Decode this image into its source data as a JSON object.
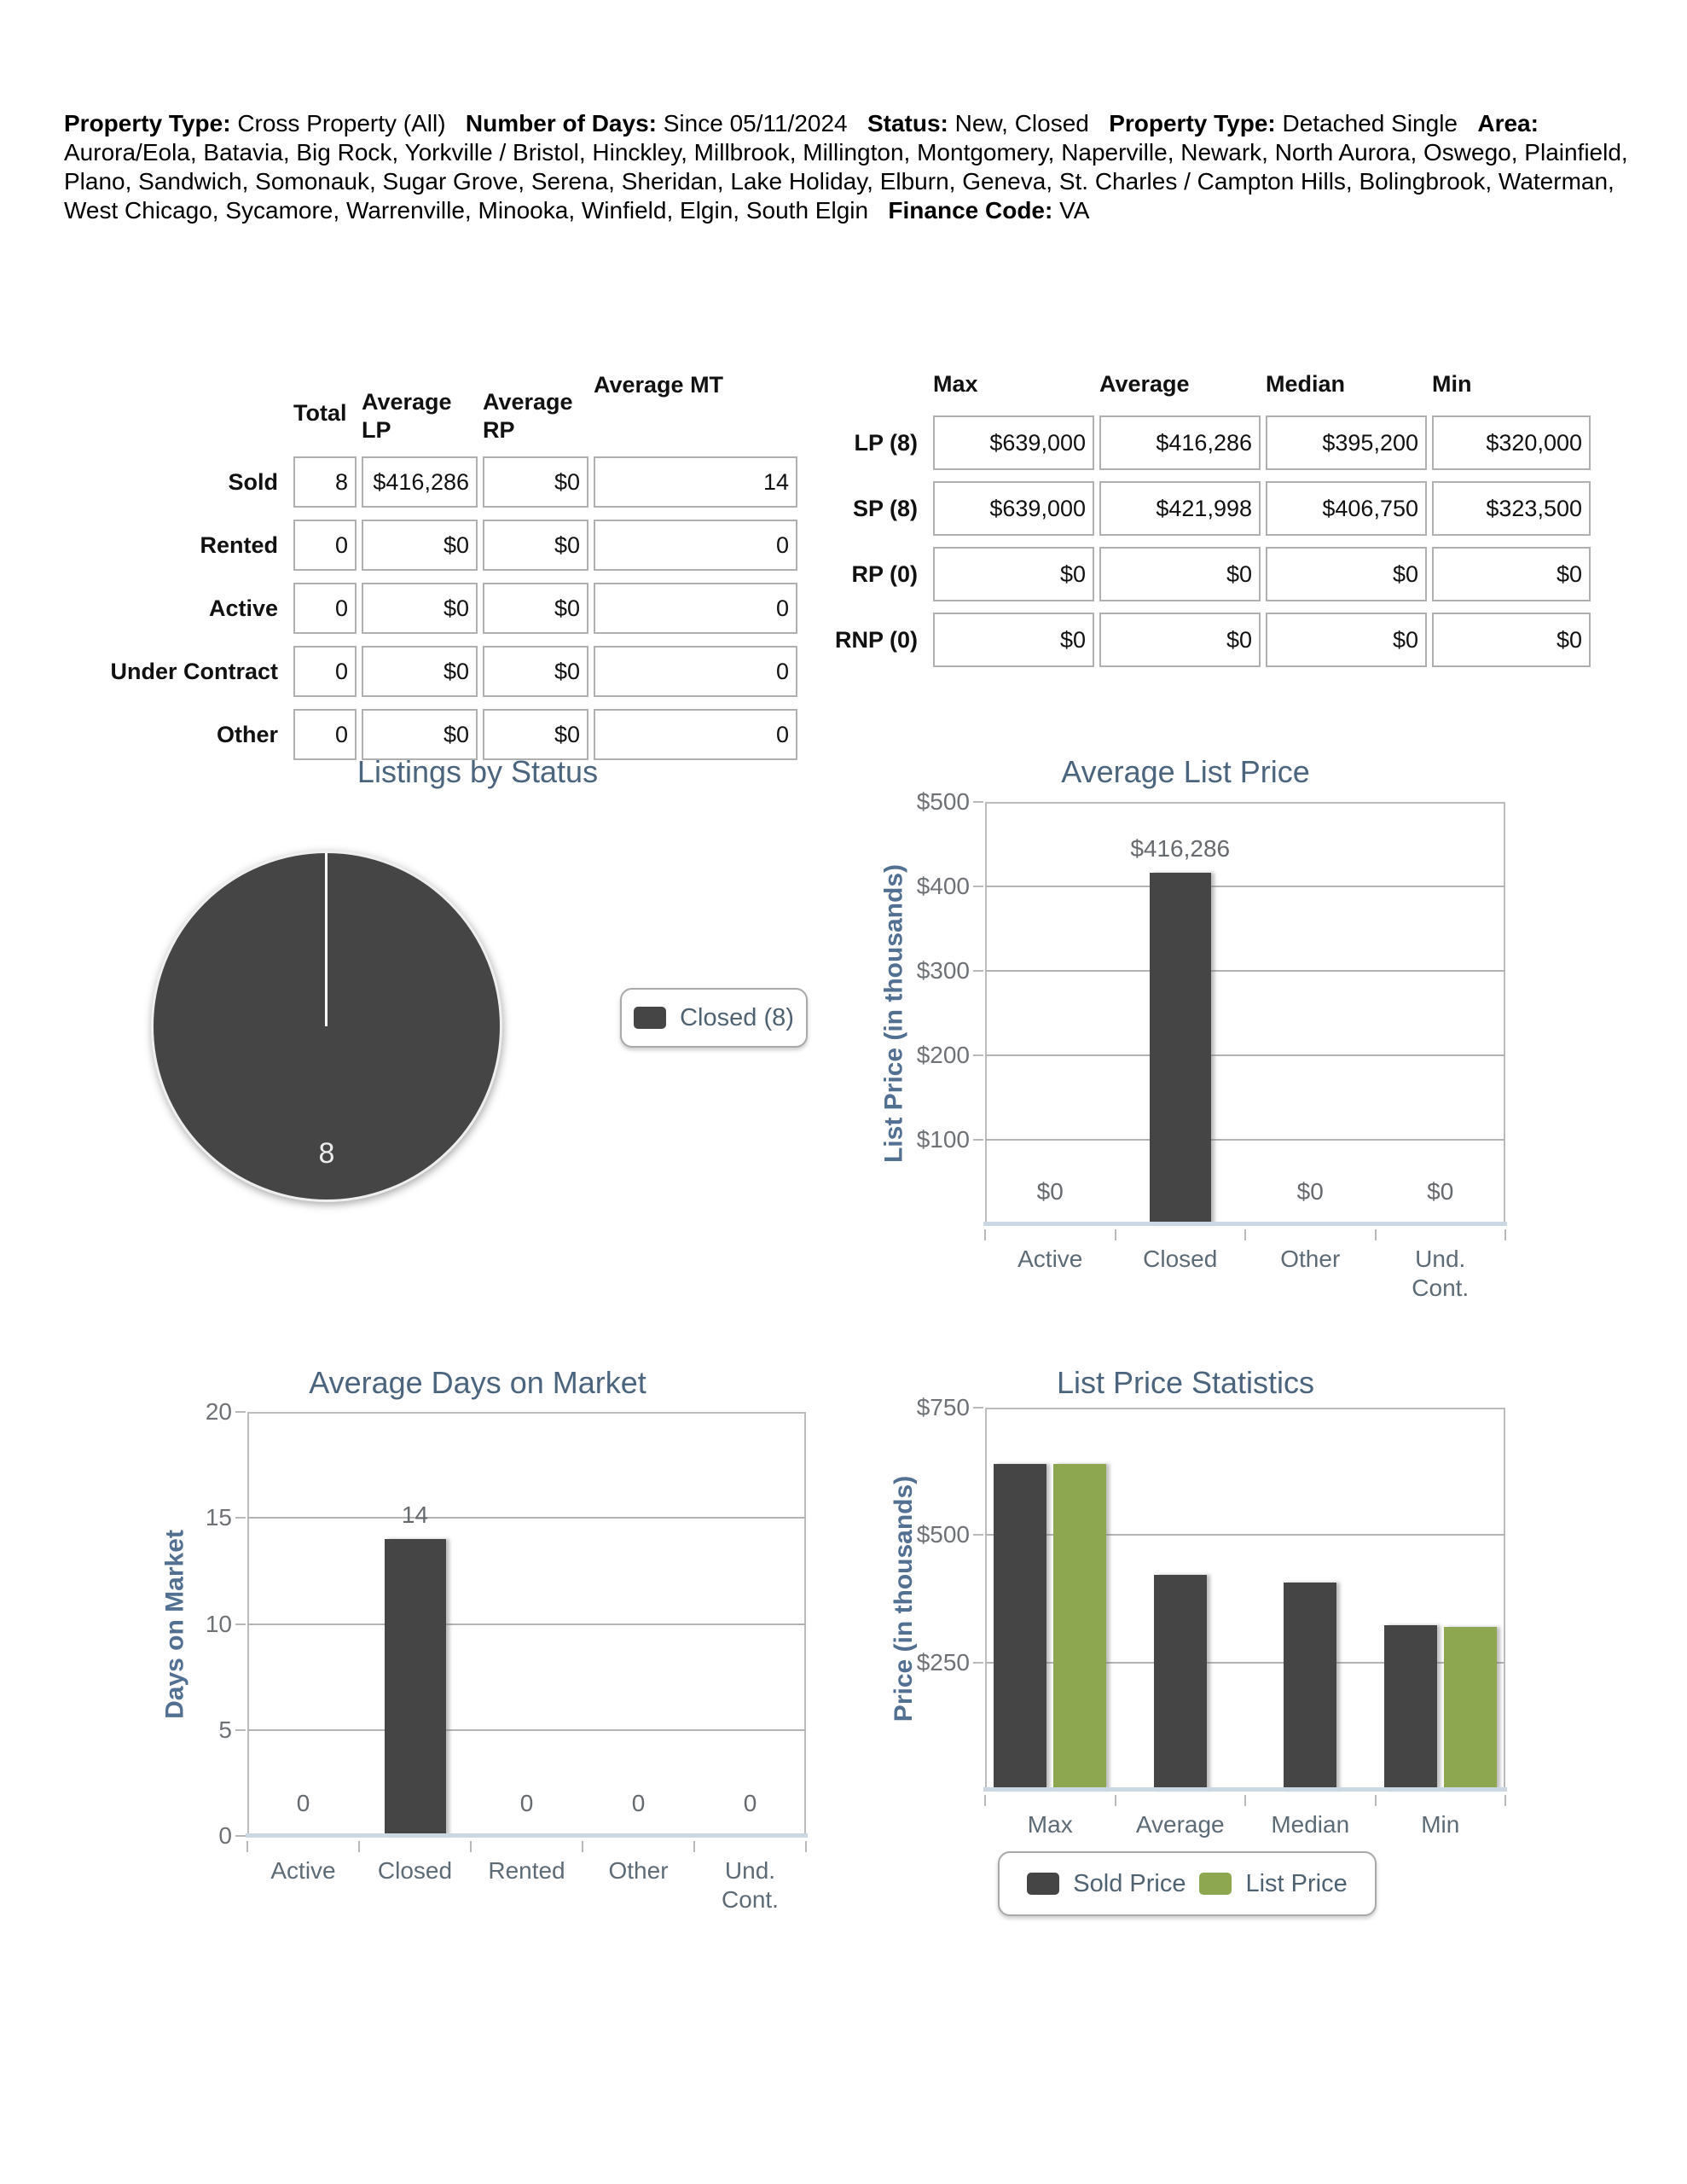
{
  "header": {
    "segments": [
      {
        "label": "Property Type:",
        "value": "Cross Property (All)"
      },
      {
        "label": "Number of Days:",
        "value": "Since 05/11/2024"
      },
      {
        "label": "Status:",
        "value": "New, Closed"
      },
      {
        "label": "Property Type:",
        "value": "Detached Single"
      },
      {
        "label": "Area:",
        "value": "Aurora/Eola, Batavia, Big Rock, Yorkville / Bristol, Hinckley, Millbrook, Millington, Montgomery, Naperville, Newark, North Aurora, Oswego, Plainfield, Plano, Sandwich, Somonauk, Sugar Grove, Serena, Sheridan, Lake Holiday, Elburn, Geneva, St. Charles / Campton Hills, Bolingbrook, Waterman, West Chicago, Sycamore, Warrenville, Minooka, Winfield, Elgin, South Elgin"
      },
      {
        "label": "Finance Code:",
        "value": "VA"
      }
    ]
  },
  "status_table": {
    "columns": [
      "Total",
      "Average LP",
      "Average RP",
      "Average MT"
    ],
    "rows": [
      {
        "label": "Sold",
        "values": [
          "8",
          "$416,286",
          "$0",
          "14"
        ]
      },
      {
        "label": "Rented",
        "values": [
          "0",
          "$0",
          "$0",
          "0"
        ]
      },
      {
        "label": "Active",
        "values": [
          "0",
          "$0",
          "$0",
          "0"
        ]
      },
      {
        "label": "Under Contract",
        "values": [
          "0",
          "$0",
          "$0",
          "0"
        ]
      },
      {
        "label": "Other",
        "values": [
          "0",
          "$0",
          "$0",
          "0"
        ]
      }
    ]
  },
  "price_table": {
    "columns": [
      "Max",
      "Average",
      "Median",
      "Min"
    ],
    "rows": [
      {
        "label": "LP (8)",
        "values": [
          "$639,000",
          "$416,286",
          "$395,200",
          "$320,000"
        ]
      },
      {
        "label": "SP (8)",
        "values": [
          "$639,000",
          "$421,998",
          "$406,750",
          "$323,500"
        ]
      },
      {
        "label": "RP (0)",
        "values": [
          "$0",
          "$0",
          "$0",
          "$0"
        ]
      },
      {
        "label": "RNP (0)",
        "values": [
          "$0",
          "$0",
          "$0",
          "$0"
        ]
      }
    ]
  },
  "colors": {
    "bar_dark": "#454545",
    "bar_green": "#8CA74F",
    "title_slate": "#4a657d",
    "axis_label_blue": "#527092"
  },
  "chart_data": [
    {
      "type": "pie",
      "title": "Listings by Status",
      "slices": [
        {
          "label": "Closed",
          "value": 8,
          "color": "#454545"
        }
      ],
      "data_label": "8",
      "legend": [
        "Closed (8)"
      ],
      "legend_position": "right"
    },
    {
      "type": "bar",
      "title": "Average List Price",
      "ylabel": "List Price (in thousands)",
      "categories": [
        "Active",
        "Closed",
        "Other",
        "Und. Cont."
      ],
      "values": [
        0,
        416.286,
        0,
        0
      ],
      "value_labels": [
        "$0",
        "$416,286",
        "$0",
        "$0"
      ],
      "ylim": [
        0,
        500
      ],
      "yticks": [
        "$500",
        "$400",
        "$300",
        "$200",
        "$100"
      ],
      "ytick_values": [
        500,
        400,
        300,
        200,
        100
      ],
      "bar_color": "#454545",
      "grid": true
    },
    {
      "type": "bar",
      "title": "Average Days on Market",
      "ylabel": "Days on Market",
      "categories": [
        "Active",
        "Closed",
        "Rented",
        "Other",
        "Und. Cont."
      ],
      "values": [
        0,
        14,
        0,
        0,
        0
      ],
      "value_labels": [
        "0",
        "14",
        "0",
        "0",
        "0"
      ],
      "ylim": [
        0,
        20
      ],
      "yticks": [
        "20",
        "15",
        "10",
        "5",
        "0"
      ],
      "ytick_values": [
        20,
        15,
        10,
        5,
        0
      ],
      "bar_color": "#454545",
      "grid": true
    },
    {
      "type": "bar",
      "title": "List Price Statistics",
      "ylabel": "Price (in thousands)",
      "categories": [
        "Max",
        "Average",
        "Median",
        "Min"
      ],
      "series": [
        {
          "name": "Sold Price",
          "color": "#454545",
          "values": [
            639,
            421.998,
            406.75,
            323.5
          ]
        },
        {
          "name": "List Price",
          "color": "#8CA74F",
          "values": [
            639,
            null,
            null,
            320
          ]
        }
      ],
      "ylim": [
        0,
        750
      ],
      "yticks": [
        "$750",
        "$500",
        "$250"
      ],
      "ytick_values": [
        750,
        500,
        250
      ],
      "legend": [
        "Sold Price",
        "List Price"
      ],
      "legend_position": "bottom",
      "grid": true
    }
  ]
}
